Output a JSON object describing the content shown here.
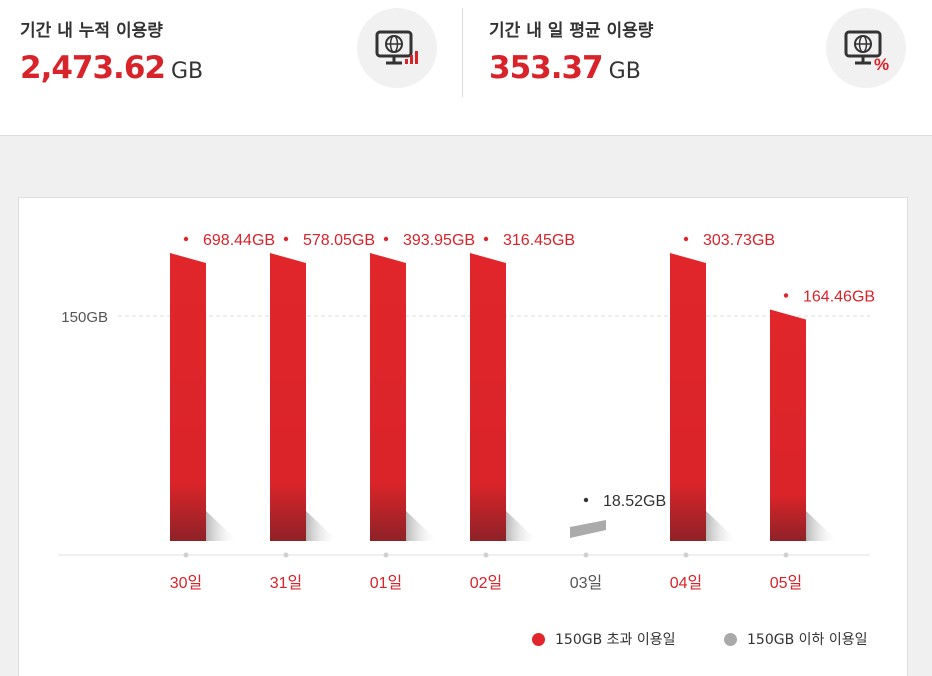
{
  "summary": {
    "total": {
      "label": "기간 내 누적 이용량",
      "value": "2,473.62",
      "unit": "GB",
      "icon": "monitor-usage-icon"
    },
    "average": {
      "label": "기간 내 일 평균 이용량",
      "value": "353.37",
      "unit": "GB",
      "icon": "monitor-percent-icon"
    }
  },
  "colors": {
    "accent": "#d9232a",
    "gray": "#a9a9a9",
    "bar_red": "#e0262b"
  },
  "chart_data": {
    "type": "bar",
    "categories": [
      "30일",
      "31일",
      "01일",
      "02일",
      "03일",
      "04일",
      "05일"
    ],
    "values": [
      698.44,
      578.05,
      393.95,
      316.45,
      18.52,
      303.73,
      164.46
    ],
    "value_labels": [
      "698.44GB",
      "578.05GB",
      "393.95GB",
      "316.45GB",
      "18.52GB",
      "303.73GB",
      "164.46GB"
    ],
    "threshold": {
      "value": 150,
      "label": "150GB"
    },
    "unit": "GB",
    "grid": false,
    "legend": [
      {
        "label": "150GB 초과 이용일",
        "color": "#e0262b"
      },
      {
        "label": "150GB 이하 이용일",
        "color": "#a9a9a9"
      }
    ],
    "legend_position": "bottom-right"
  }
}
